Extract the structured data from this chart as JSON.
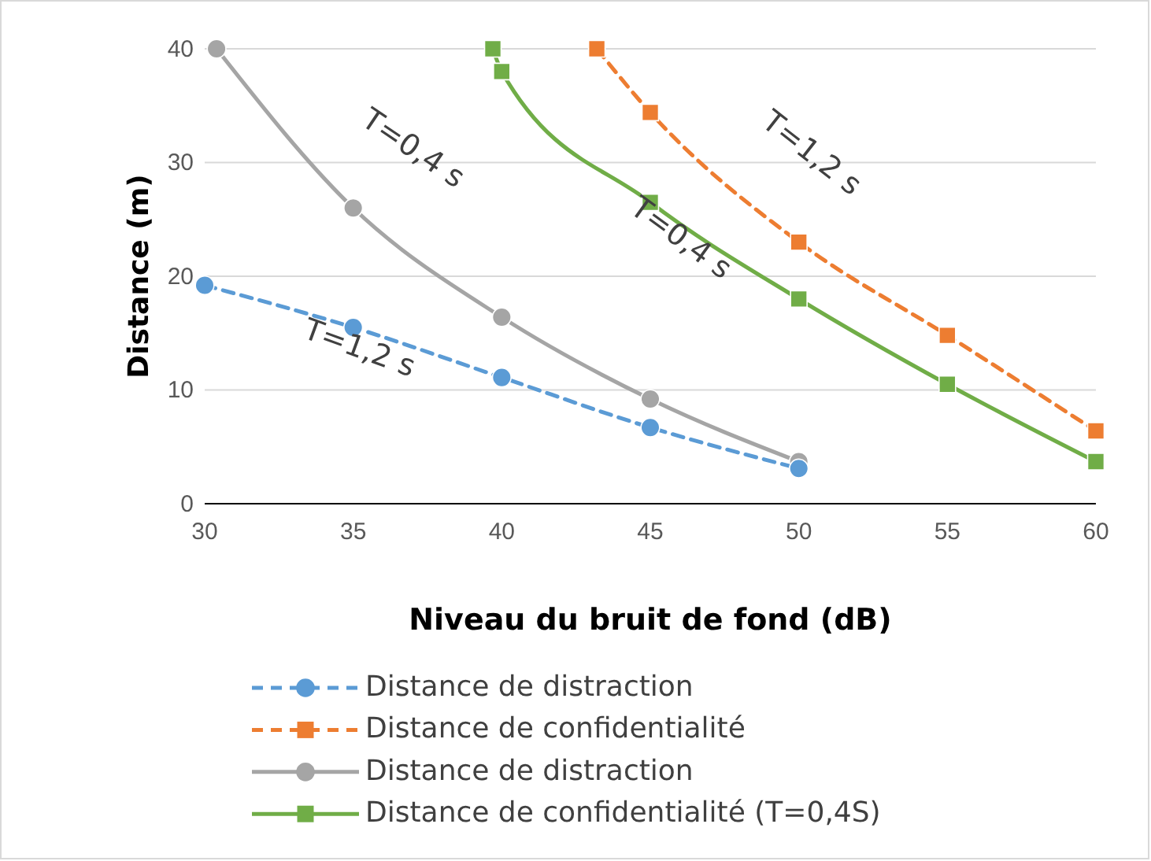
{
  "chart_data": {
    "type": "line",
    "xlabel": "Niveau du bruit de fond (dB)",
    "ylabel": "Distance (m)",
    "xlim": [
      30,
      60
    ],
    "xticks": [
      30,
      35,
      40,
      45,
      50,
      55,
      60
    ],
    "ylim": [
      0,
      40
    ],
    "yticks": [
      0,
      10,
      20,
      30,
      40
    ],
    "grid": "y",
    "legend": "bottom",
    "series": [
      {
        "name": "Distance de distraction",
        "color": "#5b9bd5",
        "marker": "circle",
        "line_style": "dashed",
        "x": [
          30,
          35,
          40,
          45,
          50
        ],
        "values": [
          19.2,
          15.5,
          11.1,
          6.7,
          3.1
        ]
      },
      {
        "name": "Distance de confidentialité",
        "color": "#ed7d31",
        "marker": "square",
        "line_style": "dashed",
        "x": [
          43.2,
          45,
          50,
          55,
          60
        ],
        "values": [
          40,
          34.4,
          23,
          14.8,
          6.4
        ]
      },
      {
        "name": "Distance de distraction",
        "color": "#a5a5a5",
        "marker": "circle",
        "line_style": "solid",
        "x": [
          30.4,
          35,
          40,
          45,
          50
        ],
        "values": [
          40,
          26,
          16.4,
          9.2,
          3.7
        ]
      },
      {
        "name": "Distance de confidentialité (T=0,4S)",
        "color": "#70ad47",
        "marker": "square",
        "line_style": "solid",
        "x": [
          39.7,
          40,
          45,
          50,
          55,
          60
        ],
        "values": [
          40,
          38,
          26.5,
          18,
          10.5,
          3.7
        ]
      }
    ],
    "annotations": [
      "T=0,4 s",
      "T=1,2 s",
      "T=1,2 s",
      "T=0,4 s"
    ]
  }
}
